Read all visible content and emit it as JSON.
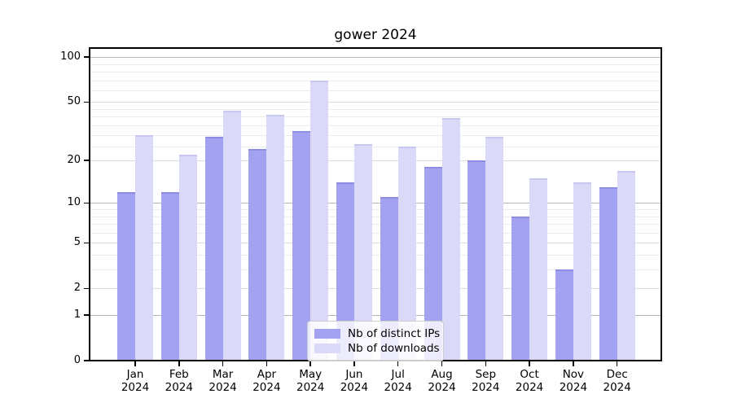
{
  "chart_data": {
    "type": "bar",
    "title": "gower 2024",
    "categories": [
      "Jan\n2024",
      "Feb\n2024",
      "Mar\n2024",
      "Apr\n2024",
      "May\n2024",
      "Jun\n2024",
      "Jul\n2024",
      "Aug\n2024",
      "Sep\n2024",
      "Oct\n2024",
      "Nov\n2024",
      "Dec\n2024"
    ],
    "series": [
      {
        "name": "Nb of distinct IPs",
        "color": "#a2a2f0",
        "edge_color": "#8d8de4",
        "values": [
          12,
          12,
          29,
          24,
          32,
          14,
          11,
          18,
          20,
          8,
          3,
          13
        ]
      },
      {
        "name": "Nb of downloads",
        "color": "#dadaf8",
        "edge_color": "#c7c7ef",
        "values": [
          30,
          22,
          44,
          41,
          70,
          26,
          25,
          39,
          29,
          15,
          14,
          17
        ]
      }
    ],
    "xlabel": "",
    "ylabel": "",
    "y_axis": {
      "scale": "log1p",
      "ylim": [
        0,
        115
      ],
      "tick_values": [
        0,
        1,
        2,
        5,
        10,
        20,
        50,
        100
      ],
      "tick_labels": [
        "0",
        "1",
        "2",
        "5",
        "10",
        "20",
        "50",
        "100"
      ],
      "major_gridlines": [
        1,
        10,
        100
      ],
      "mid_gridlines": [
        2,
        5,
        20,
        50
      ],
      "minor_gridlines": [
        3,
        4,
        6,
        7,
        8,
        9,
        25,
        30,
        35,
        40,
        45,
        60,
        70,
        80,
        90
      ]
    },
    "grid": "on",
    "legend_position": "lower center"
  },
  "colors": {
    "grid_major": "#b5b5b5",
    "grid_mid": "#dcdcdc",
    "grid_minor": "#ececec",
    "spine": "#000000",
    "background": "#ffffff"
  }
}
